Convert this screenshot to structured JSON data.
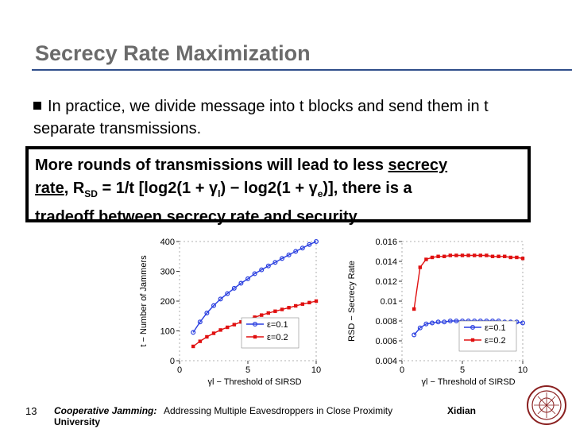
{
  "slide": {
    "title": "Secrecy Rate Maximization",
    "bullet": "In practice,  we divide message into t blocks and send them in t separate transmissions.",
    "callout": {
      "line1_pre": "More rounds of transmissions will lead to less ",
      "line1_u": "secrecy",
      "line2_u": "rate",
      "line2_a": ",  R",
      "line2_sub": "SD",
      "line2_b": " = 1/t [log2(1 + γ",
      "line2_sub2": "l",
      "line2_c": ") − log2(1 + γ",
      "line2_sub3": "e",
      "line2_d": ")],  there is a",
      "line3": "tradeoff between secrecy rate and security."
    },
    "footer": {
      "slide_number": "13",
      "part1": "Cooperative Jamming:",
      "part2": "University",
      "part3": "Addressing Multiple Eavesdroppers in Close Proximity",
      "org": "Xidian"
    }
  },
  "chart_data": [
    {
      "type": "line",
      "ylabel": "t − Number of Jammers",
      "xlabel": "γl − Threshold of SIRSD",
      "xlim": [
        0,
        10
      ],
      "ylim": [
        0,
        400
      ],
      "xticks": [
        "0",
        "5",
        "10"
      ],
      "yticks": [
        "0",
        "100",
        "200",
        "300",
        "400"
      ],
      "legend_position": "bottom-right",
      "x": [
        1,
        1.5,
        2,
        2.5,
        3,
        3.5,
        4,
        4.5,
        5,
        5.5,
        6,
        6.5,
        7,
        7.5,
        8,
        8.5,
        9,
        9.5,
        10
      ],
      "series": [
        {
          "name": "ε=0.1",
          "color": "#2a3fe0",
          "marker": "circle",
          "values": [
            95,
            130,
            160,
            185,
            207,
            225,
            243,
            260,
            275,
            292,
            305,
            318,
            330,
            343,
            355,
            367,
            378,
            390,
            400
          ]
        },
        {
          "name": "ε=0.2",
          "color": "#e01010",
          "marker": "square",
          "values": [
            48,
            65,
            80,
            92,
            103,
            112,
            121,
            130,
            138,
            146,
            153,
            160,
            166,
            172,
            178,
            184,
            190,
            195,
            200
          ]
        }
      ]
    },
    {
      "type": "line",
      "ylabel": "RSD − Secrecy Rate",
      "xlabel": "γl − Threshold of SIRSD",
      "xlim": [
        0,
        10
      ],
      "ylim": [
        0.004,
        0.016
      ],
      "xticks": [
        "0",
        "5",
        "10"
      ],
      "yticks": [
        "0.004",
        "0.006",
        "0.008",
        "0.01",
        "0.012",
        "0.014",
        "0.016"
      ],
      "legend_position": "bottom-right",
      "x": [
        1,
        1.5,
        2,
        2.5,
        3,
        3.5,
        4,
        4.5,
        5,
        5.5,
        6,
        6.5,
        7,
        7.5,
        8,
        8.5,
        9,
        9.5,
        10
      ],
      "series": [
        {
          "name": "ε=0.1",
          "color": "#2a3fe0",
          "marker": "circle",
          "values": [
            0.0066,
            0.0073,
            0.0077,
            0.0078,
            0.0079,
            0.0079,
            0.008,
            0.008,
            0.008,
            0.008,
            0.008,
            0.008,
            0.008,
            0.008,
            0.008,
            0.0079,
            0.0079,
            0.0079,
            0.0078
          ]
        },
        {
          "name": "ε=0.2",
          "color": "#e01010",
          "marker": "square",
          "values": [
            0.0092,
            0.0134,
            0.0142,
            0.0144,
            0.0145,
            0.0145,
            0.0146,
            0.0146,
            0.0146,
            0.0146,
            0.0146,
            0.0146,
            0.0146,
            0.0145,
            0.0145,
            0.0145,
            0.0144,
            0.0144,
            0.0143
          ]
        }
      ]
    }
  ]
}
